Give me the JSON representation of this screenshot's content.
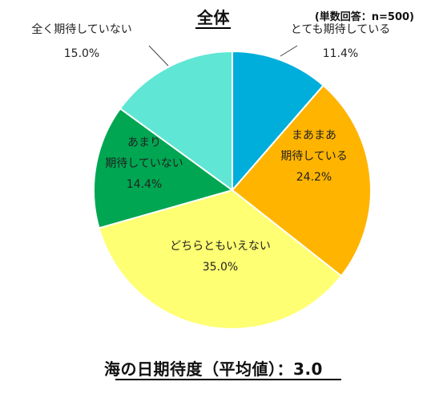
{
  "header": {
    "title": "全体",
    "sample": "(単数回答：n=500)"
  },
  "footer": {
    "average_label": "海の日期待度（平均値）：3.0"
  },
  "chart_data": {
    "type": "pie",
    "title": "全体",
    "sample_text": "(単数回答：n=500)",
    "start_angle_deg": 0,
    "direction": "clockwise",
    "slices": [
      {
        "label_lines": [
          "とても期待している"
        ],
        "value": 11.4,
        "value_label": "11.4%",
        "color": "#00AEDB",
        "label_position": "outside"
      },
      {
        "label_lines": [
          "まあまあ",
          "期待している"
        ],
        "value": 24.2,
        "value_label": "24.2%",
        "color": "#FFB400",
        "label_position": "inside"
      },
      {
        "label_lines": [
          "どちらともいえない"
        ],
        "value": 35.0,
        "value_label": "35.0%",
        "color": "#FFFF73",
        "label_position": "inside"
      },
      {
        "label_lines": [
          "あまり",
          "期待していない"
        ],
        "value": 14.4,
        "value_label": "14.4%",
        "color": "#00A651",
        "label_position": "inside"
      },
      {
        "label_lines": [
          "全く期待していない"
        ],
        "value": 15.0,
        "value_label": "15.0%",
        "color": "#5FE6D4",
        "label_position": "outside"
      }
    ],
    "summary": {
      "label": "海の日期待度（平均値）",
      "value": 3.0
    }
  }
}
